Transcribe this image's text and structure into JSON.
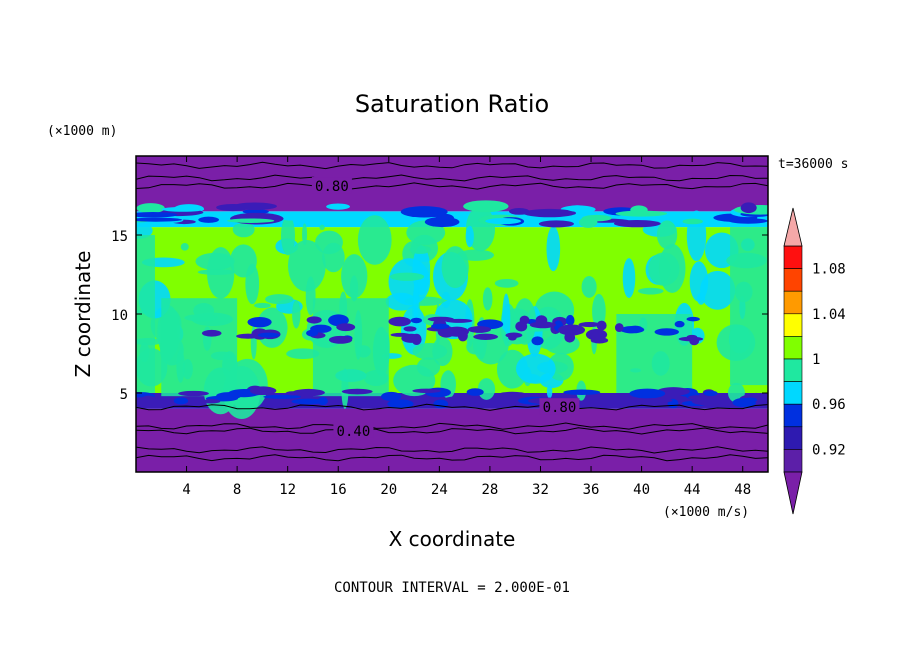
{
  "chart_data": {
    "type": "heatmap",
    "title": "Saturation Ratio",
    "xlabel": "X coordinate",
    "ylabel": "Z coordinate",
    "x_unit": "(×1000 m/s)",
    "y_unit": "(×1000 m)",
    "time_label": "t=36000 s",
    "footer": "CONTOUR INTERVAL = 2.000E-01",
    "xlim": [
      0,
      50
    ],
    "ylim": [
      0,
      20
    ],
    "x_ticks": [
      4,
      8,
      12,
      16,
      20,
      24,
      28,
      32,
      36,
      40,
      44,
      48
    ],
    "y_ticks": [
      5,
      10,
      15
    ],
    "contour_interval": 0.2,
    "contour_labels": [
      {
        "text": "0.80",
        "x": 15.5,
        "y": 18.1
      },
      {
        "text": "0.80",
        "x": 33.5,
        "y": 4.1
      },
      {
        "text": "0.40",
        "x": 17.2,
        "y": 2.6
      }
    ],
    "colorbar": {
      "tick_labels": [
        "0.92",
        "0.96",
        "1",
        "1.04",
        "1.08"
      ],
      "levels": [
        0.9,
        0.92,
        0.94,
        0.96,
        0.98,
        1.0,
        1.02,
        1.04,
        1.06,
        1.08,
        1.1
      ],
      "colors": [
        "#5c1fa8",
        "#2e1ab0",
        "#0030e0",
        "#00d8ff",
        "#1fe8a0",
        "#80ff00",
        "#ffff00",
        "#ff9a00",
        "#ff4400",
        "#ff1010"
      ],
      "under_color": "#7a1fa8",
      "over_color": "#f5a8a8"
    },
    "layers": [
      {
        "z_range": [
          0,
          4.0
        ],
        "value": "< 0.90",
        "color": "#7a1fa8"
      },
      {
        "z_range": [
          4.0,
          5.0
        ],
        "value": "0.90-0.94",
        "color": "#3a1cb8"
      },
      {
        "z_range": [
          5.0,
          15.5
        ],
        "value": "0.98-1.02",
        "color": "#80ff00"
      },
      {
        "z_range": [
          15.5,
          16.5
        ],
        "value": "0.94-0.98",
        "color": "#00d8ff"
      },
      {
        "z_range": [
          16.5,
          20.0
        ],
        "value": "< 0.90",
        "color": "#7a1fa8"
      }
    ],
    "contour_lines_z": [
      0.9,
      1.4,
      2.6,
      2.9,
      4.1,
      18.1,
      18.6,
      19.4
    ]
  }
}
